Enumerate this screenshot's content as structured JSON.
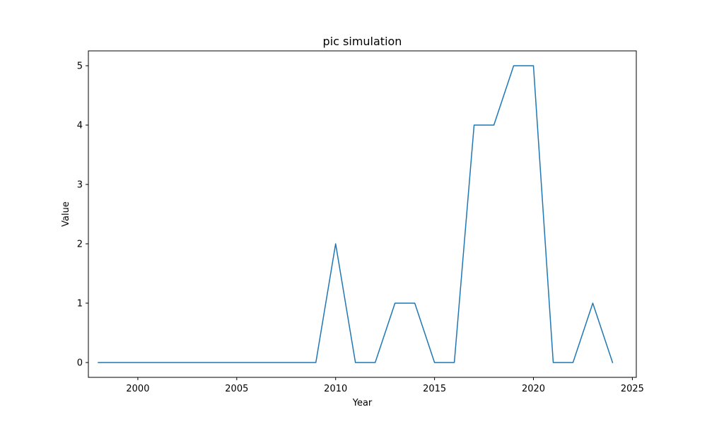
{
  "chart_data": {
    "type": "line",
    "title": "pic simulation",
    "xlabel": "Year",
    "ylabel": "Value",
    "xlim": [
      1997.5,
      2025.2
    ],
    "ylim": [
      -0.25,
      5.25
    ],
    "xticks": [
      2000,
      2005,
      2010,
      2015,
      2020,
      2025
    ],
    "yticks": [
      0,
      1,
      2,
      3,
      4,
      5
    ],
    "grid": false,
    "series": [
      {
        "color": "#1f77b4",
        "x": [
          1998,
          1999,
          2000,
          2001,
          2002,
          2003,
          2004,
          2005,
          2006,
          2007,
          2008,
          2009,
          2010,
          2011,
          2012,
          2013,
          2014,
          2015,
          2016,
          2017,
          2018,
          2019,
          2020,
          2021,
          2022,
          2023,
          2024
        ],
        "values": [
          0,
          0,
          0,
          0,
          0,
          0,
          0,
          0,
          0,
          0,
          0,
          0,
          2,
          0,
          0,
          1,
          1,
          0,
          0,
          4,
          4,
          5,
          5,
          0,
          0,
          1,
          0
        ]
      }
    ]
  }
}
